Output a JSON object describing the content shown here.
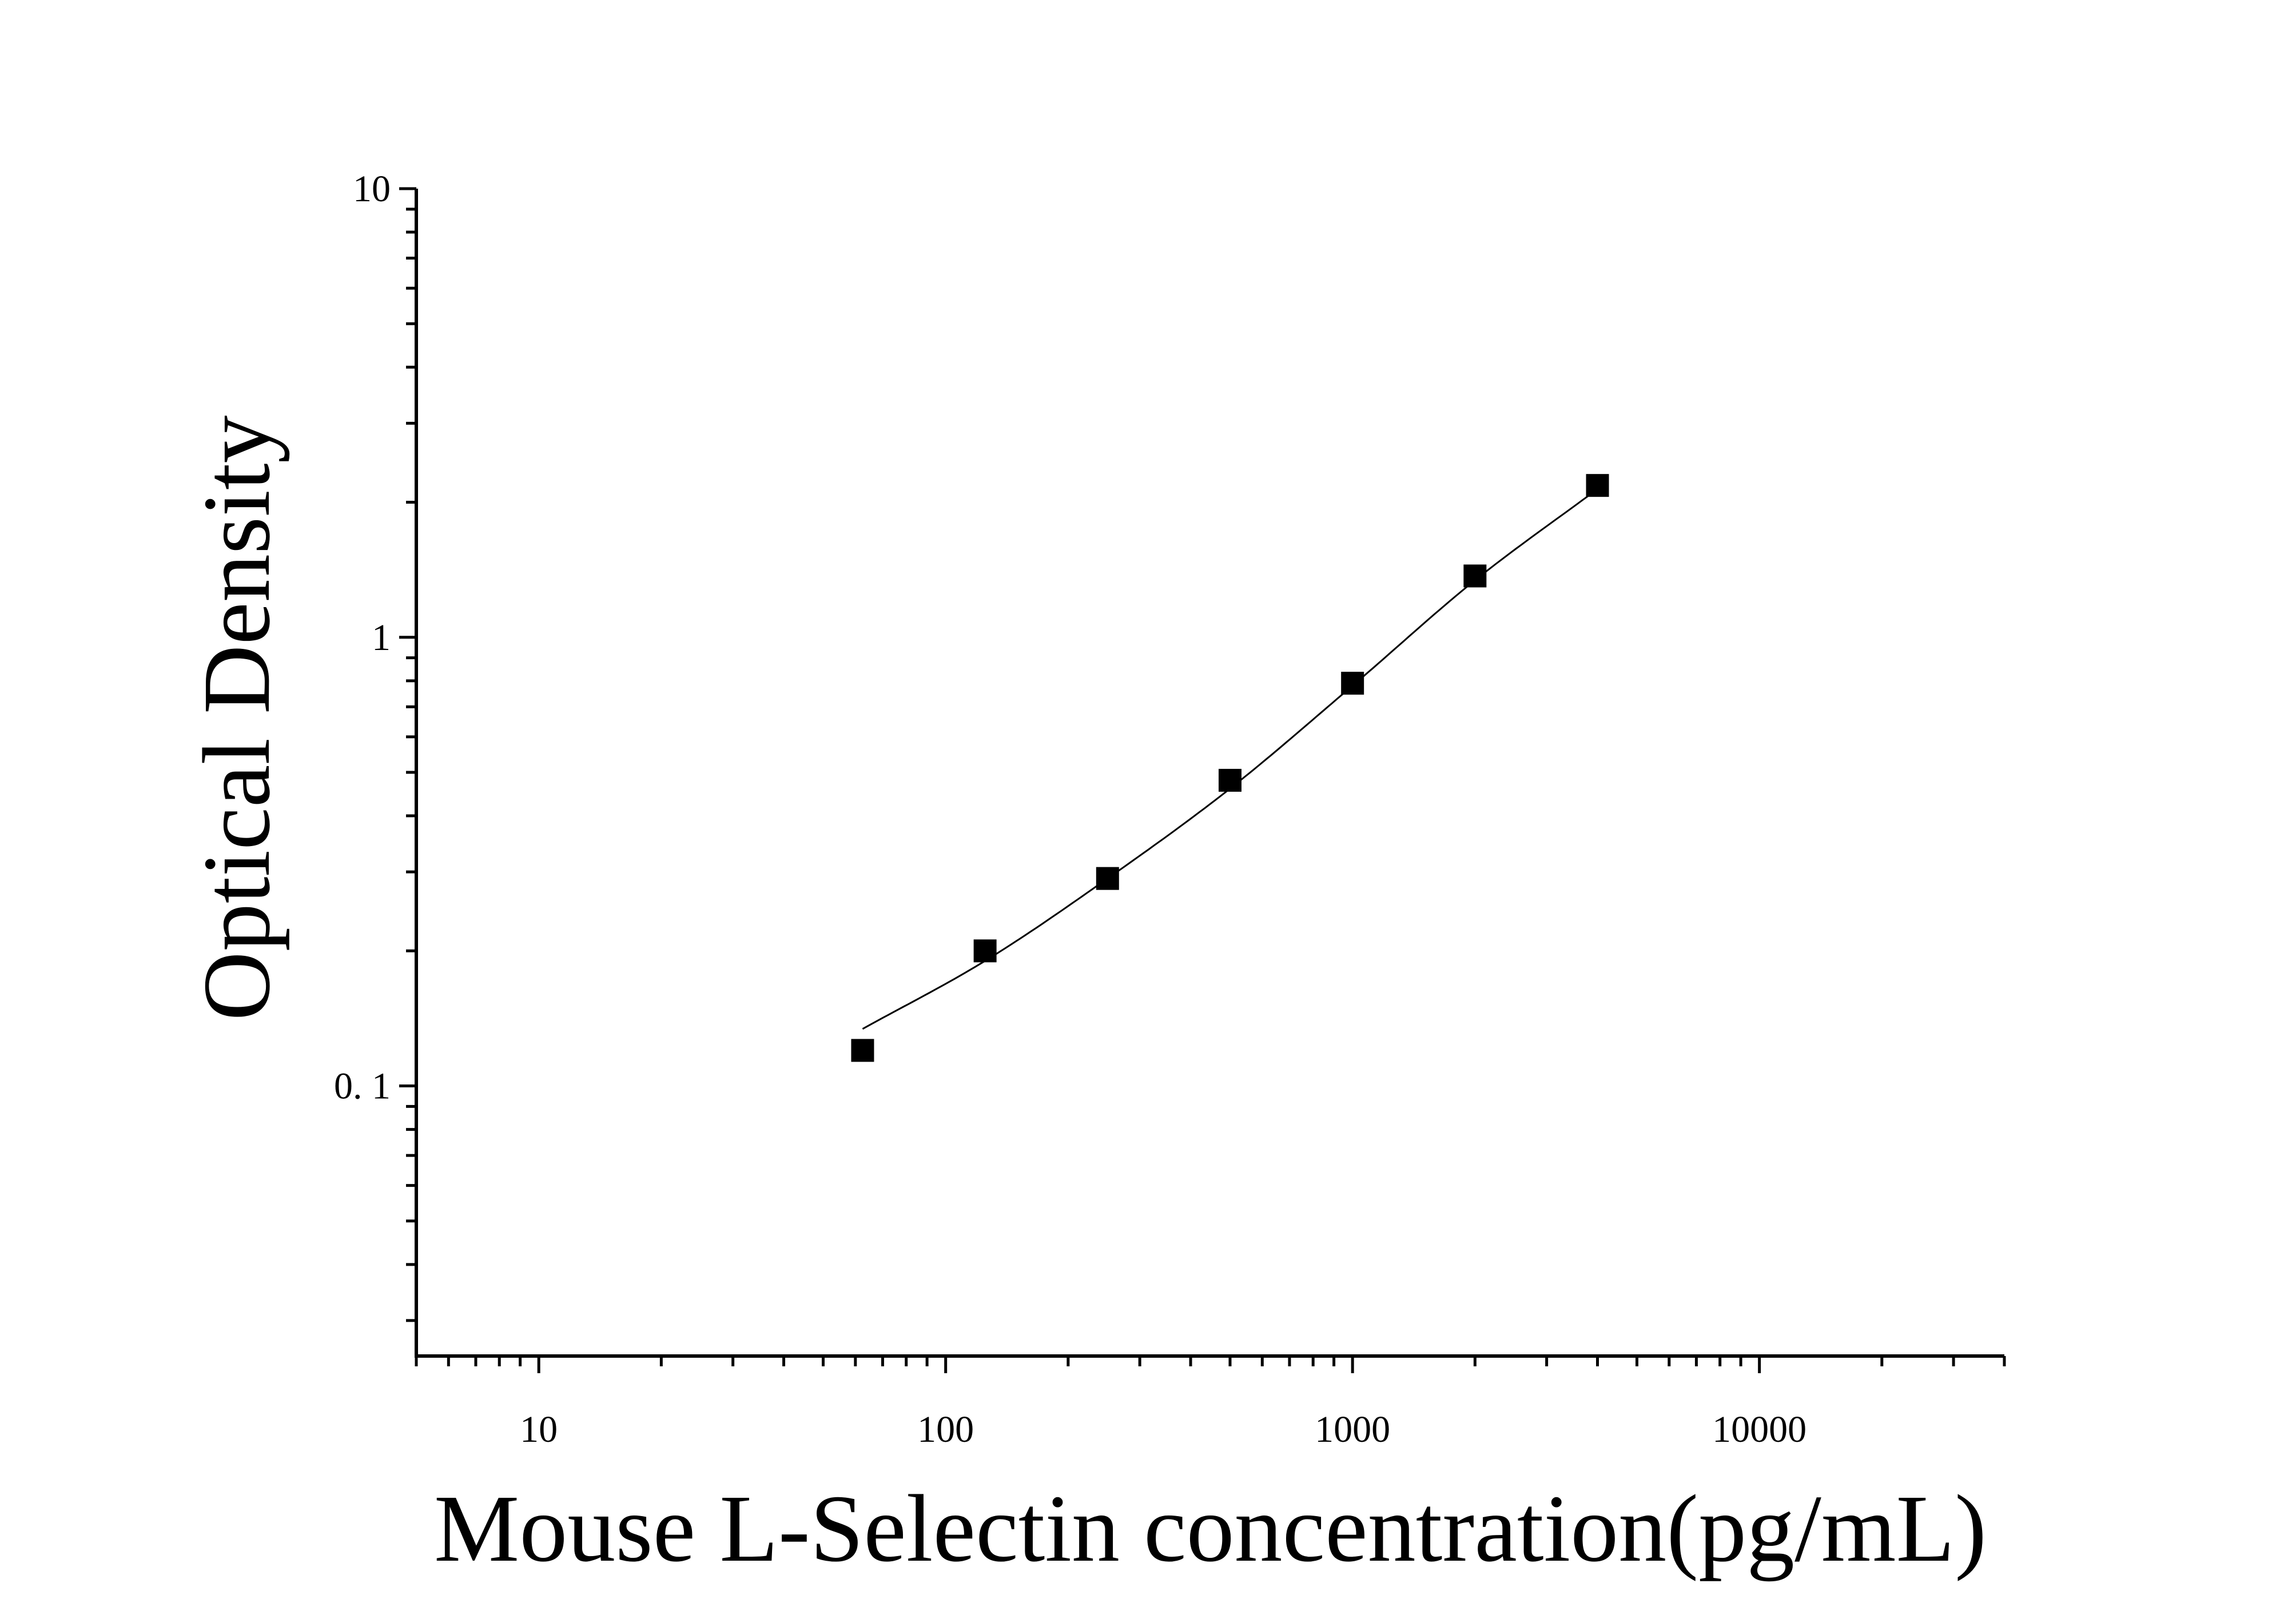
{
  "chart_data": {
    "type": "scatter",
    "title": "",
    "xlabel": "Mouse L-Selectin concentration(pg/mL)",
    "ylabel": "Optical Density",
    "x_scale": "log",
    "y_scale": "log",
    "xlim": [
      5,
      40000
    ],
    "ylim": [
      0.025,
      10
    ],
    "x_ticks": [
      10,
      100,
      1000,
      10000
    ],
    "x_tick_labels": [
      "10",
      "100",
      "1000",
      "10000"
    ],
    "y_ticks": [
      0.1,
      1,
      10
    ],
    "y_tick_labels": [
      "0. 1",
      "1",
      "10"
    ],
    "grid": false,
    "legend": "none",
    "colors": {
      "marker": "#000000",
      "curve": "#000000",
      "axis": "#000000",
      "background": "#ffffff"
    },
    "series": [
      {
        "type": "scatter",
        "marker": "square",
        "x": [
          62.5,
          125,
          250,
          500,
          1000,
          2000,
          4000
        ],
        "y": [
          0.12,
          0.2,
          0.29,
          0.48,
          0.79,
          1.37,
          2.18
        ]
      },
      {
        "type": "line",
        "x": [
          62.5,
          125,
          250,
          500,
          1000,
          2000,
          4000
        ],
        "y": [
          0.134,
          0.19,
          0.29,
          0.46,
          0.78,
          1.34,
          2.14
        ]
      }
    ]
  }
}
